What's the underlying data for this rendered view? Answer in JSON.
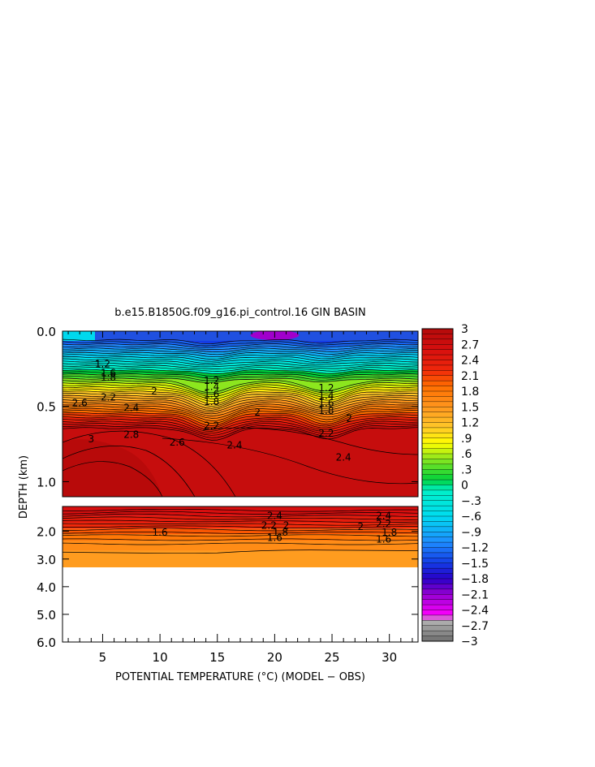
{
  "chart_data": {
    "type": "heatmap",
    "title": "b.e15.B1850G.f09_g16.pi_control.16 GIN BASIN",
    "xlabel": "POTENTIAL TEMPERATURE (°C) (MODEL − OBS)",
    "ylabel": "DEPTH (km)",
    "x_ticks": [
      "5",
      "10",
      "15",
      "20",
      "25",
      "30"
    ],
    "x_range": [
      1.5,
      32.5
    ],
    "upper_panel": {
      "depth_range_km": [
        0.0,
        1.1
      ],
      "y_ticks": [
        "0.0",
        "0.5",
        "1.0"
      ]
    },
    "lower_panel": {
      "depth_range_km": [
        1.1,
        6.0
      ],
      "y_ticks": [
        "2.0",
        "3.0",
        "4.0",
        "5.0",
        "6.0"
      ],
      "data_bottom_km": 3.3
    },
    "colorbar": {
      "min": -3,
      "max": 3,
      "labels": [
        "3",
        "2.7",
        "2.4",
        "2.1",
        "1.8",
        "1.5",
        "1.2",
        ".9",
        ".6",
        ".3",
        "0",
        "−.3",
        "−.6",
        "−.9",
        "−1.2",
        "−1.5",
        "−1.8",
        "−2.1",
        "−2.4",
        "−2.7",
        "−3"
      ]
    },
    "contour_labels_upper": [
      {
        "text": "2.6",
        "x": 3.0,
        "depth": 0.5
      },
      {
        "text": "2.2",
        "x": 5.5,
        "depth": 0.46
      },
      {
        "text": "2.4",
        "x": 7.5,
        "depth": 0.53
      },
      {
        "text": "2",
        "x": 9.5,
        "depth": 0.42
      },
      {
        "text": "2.8",
        "x": 7.5,
        "depth": 0.71
      },
      {
        "text": "3",
        "x": 4.0,
        "depth": 0.74
      },
      {
        "text": "2.6",
        "x": 11.5,
        "depth": 0.76
      },
      {
        "text": "2.4",
        "x": 16.5,
        "depth": 0.78
      },
      {
        "text": "2.2",
        "x": 14.5,
        "depth": 0.65
      },
      {
        "text": "2",
        "x": 18.5,
        "depth": 0.56
      },
      {
        "text": "1.8",
        "x": 14.5,
        "depth": 0.49
      },
      {
        "text": "2.2",
        "x": 24.5,
        "depth": 0.7
      },
      {
        "text": "2",
        "x": 26.5,
        "depth": 0.6
      },
      {
        "text": "1.8",
        "x": 24.5,
        "depth": 0.55
      },
      {
        "text": "2.4",
        "x": 26.0,
        "depth": 0.86
      },
      {
        "text": "1.8",
        "x": 5.5,
        "depth": 0.33
      },
      {
        "text": "1.6",
        "x": 5.5,
        "depth": 0.3
      },
      {
        "text": "1.2",
        "x": 5.0,
        "depth": 0.24
      },
      {
        "text": "1.6",
        "x": 14.5,
        "depth": 0.44
      },
      {
        "text": "1.4",
        "x": 14.5,
        "depth": 0.39
      },
      {
        "text": "1.2",
        "x": 14.5,
        "depth": 0.35
      },
      {
        "text": "1.6",
        "x": 24.5,
        "depth": 0.5
      },
      {
        "text": "1.4",
        "x": 24.5,
        "depth": 0.45
      },
      {
        "text": "1.2",
        "x": 24.5,
        "depth": 0.4
      }
    ],
    "contour_labels_lower": [
      {
        "text": "2.4",
        "x": 20.0,
        "depth": 1.55
      },
      {
        "text": "2.2",
        "x": 19.5,
        "depth": 1.9
      },
      {
        "text": "2",
        "x": 21.0,
        "depth": 1.9
      },
      {
        "text": "1.8",
        "x": 20.5,
        "depth": 2.15
      },
      {
        "text": "1.6",
        "x": 20.0,
        "depth": 2.35
      },
      {
        "text": "1.6",
        "x": 10.0,
        "depth": 2.15
      },
      {
        "text": "2.4",
        "x": 29.5,
        "depth": 1.55
      },
      {
        "text": "2.2",
        "x": 29.5,
        "depth": 1.85
      },
      {
        "text": "2",
        "x": 27.5,
        "depth": 1.95
      },
      {
        "text": "1.8",
        "x": 30.0,
        "depth": 2.15
      },
      {
        "text": "1.6",
        "x": 29.5,
        "depth": 2.4
      }
    ]
  }
}
